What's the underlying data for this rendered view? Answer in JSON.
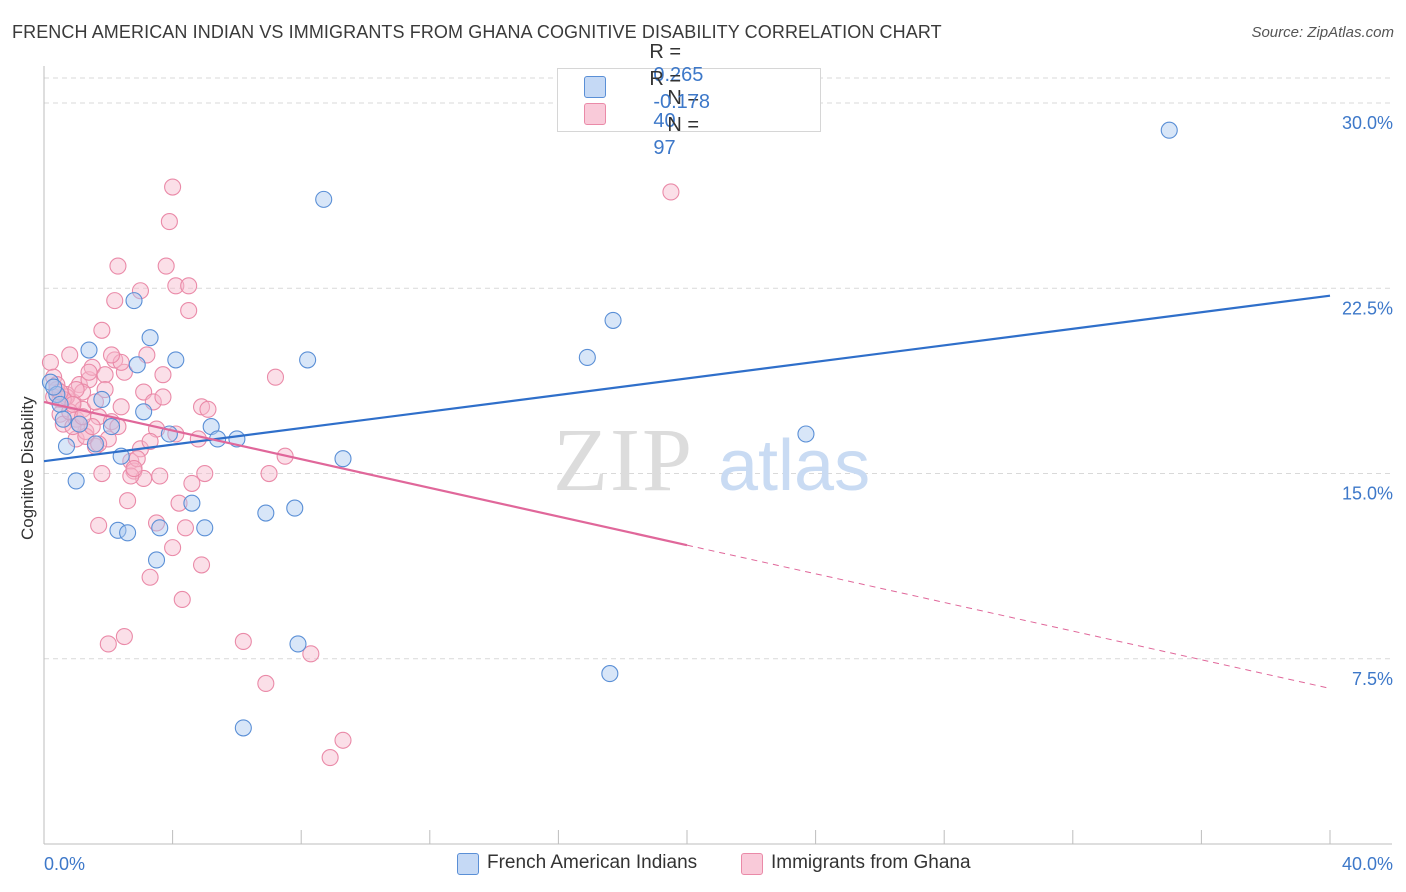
{
  "title": "FRENCH AMERICAN INDIAN VS IMMIGRANTS FROM GHANA COGNITIVE DISABILITY CORRELATION CHART",
  "source": "Source: ZipAtlas.com",
  "watermark": {
    "zip": "ZIP",
    "atlas": "atlas"
  },
  "legend_top": [
    {
      "r_label": "R =",
      "r_value": "0.265",
      "n_label": "N =",
      "n_value": "40"
    },
    {
      "r_label": "R =",
      "r_value": "-0.178",
      "n_label": "N =",
      "n_value": "97"
    }
  ],
  "colors": {
    "blue_fill": "#a9c8f0",
    "blue_stroke": "#5a8fd6",
    "blue_line": "#2f6fca",
    "pink_fill": "#f6b8cc",
    "pink_stroke": "#ea8aa8",
    "pink_line": "#e0679a",
    "grid": "#d9d9d9",
    "tick_text": "#3d78c9"
  },
  "chart_data": {
    "type": "scatter",
    "xlabel": "",
    "ylabel": "Cognitive Disability",
    "xlim": [
      0,
      40
    ],
    "ylim": [
      0,
      31.5
    ],
    "x_tick_labels": [
      "0.0%",
      "40.0%"
    ],
    "y_ticks": [
      7.5,
      15.0,
      22.5,
      30.0
    ],
    "y_tick_labels": [
      "7.5%",
      "15.0%",
      "22.5%",
      "30.0%"
    ],
    "grid": true,
    "legend_position": "bottom",
    "series": [
      {
        "name": "French American Indians",
        "color": "blue",
        "points": [
          [
            0.2,
            18.7
          ],
          [
            0.4,
            18.2
          ],
          [
            0.5,
            17.8
          ],
          [
            0.6,
            17.2
          ],
          [
            0.7,
            16.1
          ],
          [
            1.0,
            14.7
          ],
          [
            1.1,
            17.0
          ],
          [
            1.4,
            20.0
          ],
          [
            1.6,
            16.2
          ],
          [
            1.8,
            18.0
          ],
          [
            2.1,
            16.9
          ],
          [
            2.3,
            12.7
          ],
          [
            2.4,
            15.7
          ],
          [
            2.6,
            12.6
          ],
          [
            2.8,
            22.0
          ],
          [
            2.9,
            19.4
          ],
          [
            3.1,
            17.5
          ],
          [
            3.3,
            20.5
          ],
          [
            3.5,
            11.5
          ],
          [
            3.6,
            12.8
          ],
          [
            3.9,
            16.6
          ],
          [
            4.1,
            19.6
          ],
          [
            4.6,
            13.8
          ],
          [
            5.0,
            12.8
          ],
          [
            5.2,
            16.9
          ],
          [
            5.4,
            16.4
          ],
          [
            6.0,
            16.4
          ],
          [
            6.2,
            4.7
          ],
          [
            6.9,
            13.4
          ],
          [
            7.8,
            13.6
          ],
          [
            7.9,
            8.1
          ],
          [
            8.2,
            19.6
          ],
          [
            8.7,
            26.1
          ],
          [
            9.3,
            15.6
          ],
          [
            16.9,
            19.7
          ],
          [
            17.6,
            6.9
          ],
          [
            17.7,
            21.2
          ],
          [
            23.7,
            16.6
          ],
          [
            35.0,
            28.9
          ],
          [
            0.3,
            18.5
          ]
        ],
        "trend": {
          "x0": 0,
          "y0": 15.5,
          "x1": 40,
          "y1": 22.2,
          "dashed_from": null
        }
      },
      {
        "name": "Immigrants from Ghana",
        "color": "pink",
        "points": [
          [
            0.2,
            19.5
          ],
          [
            0.3,
            18.9
          ],
          [
            0.4,
            18.4
          ],
          [
            0.5,
            18.0
          ],
          [
            0.5,
            17.4
          ],
          [
            0.6,
            17.0
          ],
          [
            0.7,
            18.2
          ],
          [
            0.8,
            19.8
          ],
          [
            0.9,
            17.9
          ],
          [
            1.0,
            17.2
          ],
          [
            1.0,
            16.4
          ],
          [
            1.1,
            18.6
          ],
          [
            1.2,
            17.6
          ],
          [
            1.3,
            16.7
          ],
          [
            1.4,
            18.8
          ],
          [
            1.5,
            19.3
          ],
          [
            1.6,
            16.1
          ],
          [
            1.7,
            17.3
          ],
          [
            1.8,
            15.0
          ],
          [
            1.8,
            20.8
          ],
          [
            1.9,
            19.0
          ],
          [
            2.0,
            16.4
          ],
          [
            2.1,
            17.1
          ],
          [
            2.2,
            19.6
          ],
          [
            2.3,
            23.4
          ],
          [
            2.4,
            17.7
          ],
          [
            2.5,
            19.1
          ],
          [
            2.6,
            13.9
          ],
          [
            2.7,
            15.5
          ],
          [
            2.8,
            15.1
          ],
          [
            3.0,
            16.0
          ],
          [
            3.1,
            18.3
          ],
          [
            3.1,
            14.8
          ],
          [
            3.2,
            19.8
          ],
          [
            3.3,
            10.8
          ],
          [
            3.4,
            17.9
          ],
          [
            3.5,
            16.8
          ],
          [
            3.6,
            14.9
          ],
          [
            3.7,
            19.0
          ],
          [
            3.8,
            23.4
          ],
          [
            3.9,
            25.2
          ],
          [
            4.0,
            12.0
          ],
          [
            4.1,
            22.6
          ],
          [
            4.2,
            13.8
          ],
          [
            4.3,
            9.9
          ],
          [
            4.4,
            12.8
          ],
          [
            4.5,
            22.6
          ],
          [
            4.5,
            21.6
          ],
          [
            4.6,
            14.6
          ],
          [
            4.8,
            16.4
          ],
          [
            4.9,
            11.3
          ],
          [
            4.9,
            17.7
          ],
          [
            5.0,
            15.0
          ],
          [
            5.1,
            17.6
          ],
          [
            1.7,
            12.9
          ],
          [
            2.0,
            8.1
          ],
          [
            2.5,
            8.4
          ],
          [
            3.5,
            13.0
          ],
          [
            4.0,
            26.6
          ],
          [
            6.2,
            8.2
          ],
          [
            6.9,
            6.5
          ],
          [
            7.0,
            15.0
          ],
          [
            7.2,
            18.9
          ],
          [
            7.5,
            15.7
          ],
          [
            8.3,
            7.7
          ],
          [
            9.3,
            4.2
          ],
          [
            8.9,
            3.5
          ],
          [
            19.5,
            26.4
          ],
          [
            1.6,
            17.9
          ],
          [
            0.9,
            16.9
          ],
          [
            1.2,
            18.3
          ],
          [
            2.7,
            14.9
          ],
          [
            3.0,
            22.4
          ],
          [
            2.2,
            22.0
          ],
          [
            1.3,
            16.5
          ],
          [
            0.7,
            18.1
          ],
          [
            1.9,
            18.4
          ],
          [
            2.4,
            19.5
          ],
          [
            1.5,
            16.9
          ],
          [
            0.4,
            18.6
          ],
          [
            0.8,
            17.5
          ],
          [
            1.1,
            17.0
          ],
          [
            2.9,
            15.6
          ],
          [
            3.3,
            16.3
          ],
          [
            3.7,
            18.1
          ],
          [
            4.1,
            16.6
          ],
          [
            1.4,
            19.1
          ],
          [
            0.6,
            18.0
          ],
          [
            2.1,
            19.8
          ],
          [
            0.3,
            18.1
          ],
          [
            1.0,
            18.4
          ],
          [
            1.7,
            16.2
          ],
          [
            2.3,
            16.9
          ],
          [
            2.8,
            15.2
          ],
          [
            0.5,
            18.3
          ],
          [
            0.9,
            17.8
          ],
          [
            1.2,
            17.3
          ]
        ],
        "trend": {
          "x0": 0,
          "y0": 17.9,
          "x1": 40,
          "y1": 6.3,
          "dashed_from": 20
        }
      }
    ]
  }
}
